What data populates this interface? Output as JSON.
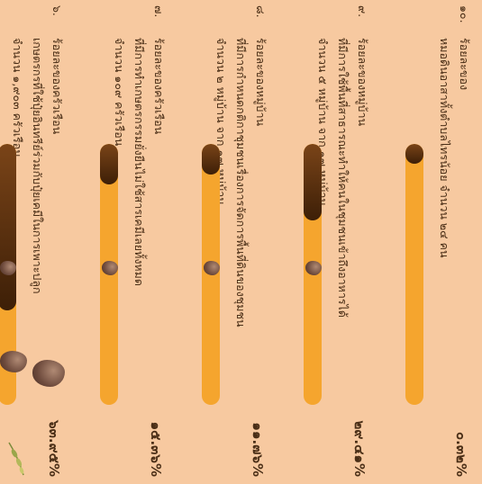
{
  "rows": [
    {
      "number": "๑๐.",
      "lines": [
        "ร้อยละของ",
        "หมอดินอาสาทั้งตำบลไทรน้อย จำนวน ๒๔ คน",
        ""
      ],
      "percent": "๐.๓๒%",
      "value": 0.32,
      "rocks": 0
    },
    {
      "number": "๙.",
      "lines": [
        "ร้อยละของหมู่บ้าน",
        "ที่มีการใช้พื้นที่สาธารณะทำให้คนในชุมชนเข้าถึงอาหารได้",
        "จำนวน ๕ หมู่บ้าน จาก ๑๗ หมู่บ้าน"
      ],
      "percent": "๒๙.๔๑%",
      "value": 29.41,
      "rocks": 1
    },
    {
      "number": "๘.",
      "lines": [
        "ร้อยละของหมู่บ้าน",
        "ที่มีการกำหนดกติกาชุมชนเรื่องการจัดการพื้นที่ดินของชุมชน",
        "จำนวน ๒ หมู่บ้าน จาก ๑๗ หมู่บ้าน"
      ],
      "percent": "๑๑.๗๖%",
      "value": 11.76,
      "rocks": 1
    },
    {
      "number": "๗.",
      "lines": [
        "ร้อยละของครัวเรือน",
        "ที่มีการทำเกษตรกรรมยั่งยืนไม่ใช้สารเคมีเลยทั้งหมด",
        "จำนวน ๑๐๙ ครัวเรือน"
      ],
      "percent": "๑๕.๓๖%",
      "value": 15.36,
      "rocks": 1
    },
    {
      "number": "๖.",
      "lines": [
        "ร้อยละของครัวเรือน",
        "เกษตรกรที่ใช้ปุ๋ยอินทรีย์ร่วมกับปุ๋ยเคมีในการเพาะปลูก",
        "จำนวน ๑,๙๐๓ ครัวเรือน"
      ],
      "percent": "๖๓.๙๕%",
      "value": 63.95,
      "rocks": 3
    }
  ],
  "colors": {
    "background": "#f7c9a0",
    "track": "#f5a52e",
    "fill_dark": "#3d1f07",
    "text": "#4a2e16"
  },
  "decor": {
    "icon": "leaf-sprig-icon"
  }
}
